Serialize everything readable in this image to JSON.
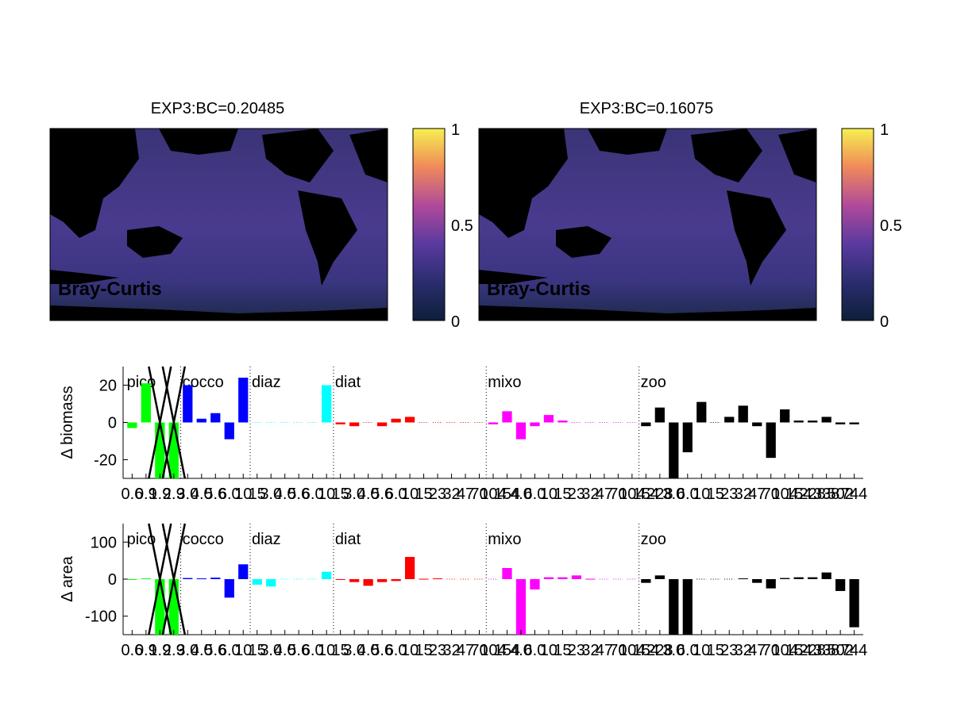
{
  "maps": [
    {
      "title": "EXP3:BC=0.20485",
      "label": "Bray-Curtis",
      "colorbar_ticks": [
        "1",
        "0.5",
        "0"
      ]
    },
    {
      "title": "EXP3:BC=0.16075",
      "label": "Bray-Curtis",
      "colorbar_ticks": [
        "1",
        "0.5",
        "0"
      ]
    }
  ],
  "colors": {
    "pico": "#00ff00",
    "cocco": "#0000ff",
    "diaz": "#00ffff",
    "diat": "#ff0000",
    "mixo": "#ff00ff",
    "zoo": "#000000",
    "ocean": "#3b3573",
    "colorbar_top": "#f6f04f",
    "colorbar_bottom": "#0e1f3a"
  },
  "chart_data": [
    {
      "type": "bar",
      "ylabel": "Δ biomass",
      "ylim": [
        -30,
        30
      ],
      "yticks": [
        "20",
        "0",
        "-20"
      ],
      "groups": [
        "pico",
        "cocco",
        "diaz",
        "diat",
        "mixo",
        "zoo"
      ],
      "tick_labels": "0.6 0.9 1.9 2.9 3.0 4.0 5.6 6.0 10 15 3.0 4.0 5.6 6.0 10 15 3.0 4.0 5.6 6.0 10 15 23 32 47 70 104 154 4.0 6.0 10 15 23 32 47 70 104 154 228 3.0 6.0 10 15 23 32 47 70 104 154 228 338 502 744",
      "values": [
        -3,
        21,
        -30,
        -30,
        20,
        2,
        5,
        -9,
        24,
        0,
        0,
        0,
        0,
        0,
        20,
        -1,
        -2,
        0,
        -2,
        2,
        3,
        0,
        0,
        0,
        0,
        0,
        -1,
        6,
        -9,
        -2,
        4,
        1,
        0,
        0,
        0,
        0,
        0,
        -2,
        8,
        -30,
        -16,
        11,
        0,
        3,
        9,
        -2,
        -19,
        7,
        1,
        1,
        3,
        -1,
        -1
      ],
      "series": [
        "pico",
        "pico",
        "pico",
        "pico",
        "cocco",
        "cocco",
        "cocco",
        "cocco",
        "cocco",
        "diaz",
        "diaz",
        "diaz",
        "diaz",
        "diaz",
        "diaz",
        "diat",
        "diat",
        "diat",
        "diat",
        "diat",
        "diat",
        "diat",
        "diat",
        "diat",
        "diat",
        "diat",
        "mixo",
        "mixo",
        "mixo",
        "mixo",
        "mixo",
        "mixo",
        "mixo",
        "mixo",
        "mixo",
        "mixo",
        "mixo",
        "zoo",
        "zoo",
        "zoo",
        "zoo",
        "zoo",
        "zoo",
        "zoo",
        "zoo",
        "zoo",
        "zoo",
        "zoo",
        "zoo",
        "zoo",
        "zoo",
        "zoo",
        "zoo"
      ],
      "crossed_out": [
        2,
        3
      ],
      "grid": false
    },
    {
      "type": "bar",
      "ylabel": "Δ area",
      "ylim": [
        -150,
        150
      ],
      "yticks": [
        "100",
        "0",
        "-100"
      ],
      "groups": [
        "pico",
        "cocco",
        "diaz",
        "diat",
        "mixo",
        "zoo"
      ],
      "tick_labels": "0.6 0.9 1.9 2.9 3.0 4.0 5.6 6.0 10 15 3.0 4.0 5.6 6.0 10 15 3.0 4.0 5.6 6.0 10 15 23 32 47 70 104 154 4.0 6.0 10 15 23 32 47 70 104 154 228 3.0 6.0 10 15 23 32 47 70 104 154 228 338 502 744",
      "values": [
        -1,
        2,
        -150,
        -150,
        3,
        2,
        4,
        -50,
        40,
        -15,
        -20,
        0,
        0,
        0,
        20,
        -2,
        -8,
        -18,
        -8,
        -5,
        60,
        1,
        2,
        0,
        0,
        0,
        0,
        30,
        -150,
        -28,
        5,
        5,
        10,
        1,
        0,
        0,
        0,
        -10,
        10,
        -150,
        -150,
        0,
        0,
        0,
        2,
        -10,
        -25,
        3,
        5,
        5,
        18,
        -32,
        -130
      ],
      "series": [
        "pico",
        "pico",
        "pico",
        "pico",
        "cocco",
        "cocco",
        "cocco",
        "cocco",
        "cocco",
        "diaz",
        "diaz",
        "diaz",
        "diaz",
        "diaz",
        "diaz",
        "diat",
        "diat",
        "diat",
        "diat",
        "diat",
        "diat",
        "diat",
        "diat",
        "diat",
        "diat",
        "diat",
        "mixo",
        "mixo",
        "mixo",
        "mixo",
        "mixo",
        "mixo",
        "mixo",
        "mixo",
        "mixo",
        "mixo",
        "mixo",
        "zoo",
        "zoo",
        "zoo",
        "zoo",
        "zoo",
        "zoo",
        "zoo",
        "zoo",
        "zoo",
        "zoo",
        "zoo",
        "zoo",
        "zoo",
        "zoo",
        "zoo",
        "zoo"
      ],
      "crossed_out": [
        2,
        3
      ],
      "grid": false
    }
  ]
}
